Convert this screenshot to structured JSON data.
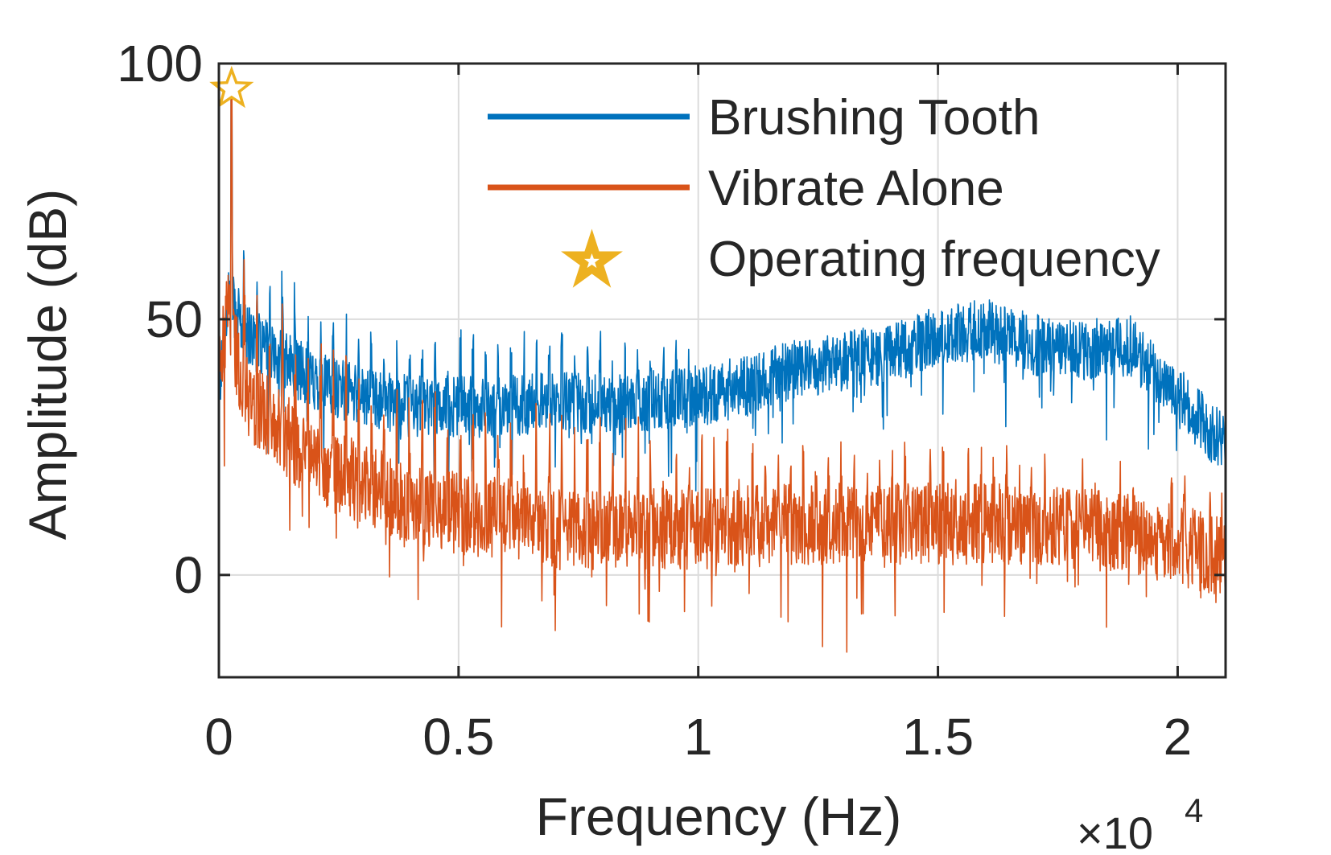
{
  "chart_data": {
    "type": "line",
    "title": "",
    "xlabel": "Frequency (Hz)",
    "ylabel": "Amplitude (dB)",
    "x_exponent_label": {
      "base": "×10",
      "exp": "4"
    },
    "xlim": [
      0,
      2.1
    ],
    "ylim": [
      -20,
      100
    ],
    "x_unit_scale": 10000,
    "xticks": [
      0,
      0.5,
      1,
      1.5,
      2
    ],
    "xtick_labels": [
      "0",
      "0.5",
      "1",
      "1.5",
      "2"
    ],
    "yticks": [
      0,
      50,
      100
    ],
    "ytick_labels": [
      "0",
      "50",
      "100"
    ],
    "grid": true,
    "legend_position": "top-right",
    "series": [
      {
        "name": "Brushing Tooth",
        "color": "#0072BD",
        "baseline_points": [
          [
            0,
            35
          ],
          [
            0.02,
            55
          ],
          [
            0.05,
            48
          ],
          [
            0.1,
            44
          ],
          [
            0.2,
            38
          ],
          [
            0.3,
            35
          ],
          [
            0.4,
            33
          ],
          [
            0.5,
            33
          ],
          [
            0.6,
            33
          ],
          [
            0.7,
            34
          ],
          [
            0.8,
            33
          ],
          [
            0.9,
            34
          ],
          [
            1.0,
            35
          ],
          [
            1.1,
            37
          ],
          [
            1.2,
            40
          ],
          [
            1.3,
            42
          ],
          [
            1.4,
            43
          ],
          [
            1.5,
            47
          ],
          [
            1.6,
            48
          ],
          [
            1.7,
            45
          ],
          [
            1.8,
            44
          ],
          [
            1.9,
            45
          ],
          [
            2.0,
            35
          ],
          [
            2.1,
            25
          ]
        ],
        "noise_amplitude_db": 6,
        "harmonic_spacing": 0.0265,
        "harmonic_peaks_until": 1.0,
        "harmonic_peak_height_db": 13
      },
      {
        "name": "Vibrate Alone",
        "color": "#D95319",
        "baseline_points": [
          [
            0,
            40
          ],
          [
            0.02,
            52
          ],
          [
            0.05,
            36
          ],
          [
            0.1,
            31
          ],
          [
            0.2,
            22
          ],
          [
            0.3,
            18
          ],
          [
            0.4,
            14
          ],
          [
            0.5,
            12
          ],
          [
            0.6,
            11
          ],
          [
            0.7,
            9
          ],
          [
            0.8,
            9
          ],
          [
            0.9,
            9
          ],
          [
            1.0,
            9
          ],
          [
            1.2,
            10
          ],
          [
            1.4,
            10
          ],
          [
            1.6,
            10
          ],
          [
            1.8,
            9
          ],
          [
            1.9,
            8
          ],
          [
            2.0,
            6
          ],
          [
            2.1,
            3
          ]
        ],
        "noise_amplitude_db": 8,
        "harmonic_spacing": 0.0265,
        "harmonic_peaks_until": 2.1,
        "harmonic_peak_height_db": 22
      }
    ],
    "markers": [
      {
        "name": "Operating frequency",
        "x": 0.0265,
        "y": 95,
        "shape": "star",
        "color": "#EDB120"
      }
    ],
    "primary_peak": {
      "x": 0.0265,
      "brushing_db": 93,
      "vibrate_db": 93
    }
  }
}
